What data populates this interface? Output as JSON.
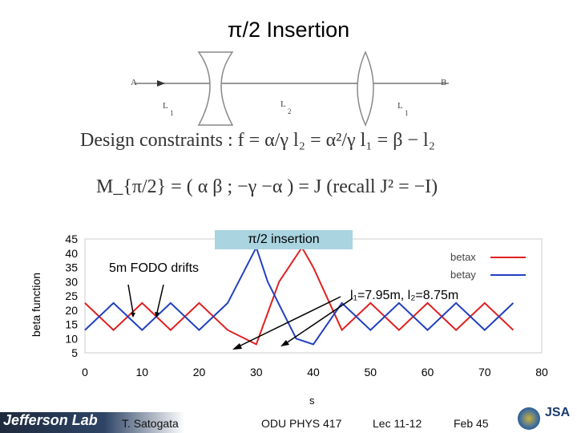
{
  "slide": {
    "title": "π/2 Insertion",
    "optics": {
      "end_left": "A",
      "end_right": "B",
      "labels": [
        "L",
        "L",
        "L"
      ],
      "subscripts": [
        "1",
        "2",
        "1"
      ]
    },
    "equations": {
      "constraints": "Design constraints :  f = α/γ    l₂ = α²/γ    l₁ = β − l₂",
      "matrix": "M_{π/2} = ( α  β ; −γ  −α ) = J        (recall J² = −I)"
    },
    "annotations": {
      "insertion": "π/2 insertion",
      "fodo": "5m FODO drifts",
      "lengths": "l₁=7.95m, l₂=8.75m"
    }
  },
  "footer": {
    "logo": "Jefferson Lab",
    "author": "T. Satogata",
    "course": "ODU PHYS 417",
    "lecture": "Lec 11-12",
    "date": "Feb  45",
    "badge": "JSA"
  },
  "chart_data": {
    "type": "line",
    "xlabel": "s",
    "ylabel": "beta function",
    "xlim": [
      0,
      80
    ],
    "ylim": [
      5,
      45
    ],
    "xticks": [
      0,
      10,
      20,
      30,
      40,
      50,
      60,
      70,
      80
    ],
    "yticks": [
      5,
      10,
      15,
      20,
      25,
      30,
      35,
      40,
      45
    ],
    "grid": false,
    "legend_position": "top-right",
    "series": [
      {
        "name": "betax",
        "color": "#e02020",
        "x": [
          0,
          5,
          10,
          15,
          20,
          25,
          30,
          34,
          38,
          40,
          45,
          50,
          55,
          60,
          65,
          70,
          75
        ],
        "y": [
          22.5,
          13,
          22.5,
          13,
          22.5,
          13,
          8,
          30,
          42,
          35,
          13,
          22.5,
          13,
          22.5,
          13,
          22.5,
          13
        ]
      },
      {
        "name": "betay",
        "color": "#2040c0",
        "x": [
          0,
          5,
          10,
          15,
          20,
          25,
          30,
          32,
          37,
          40,
          45,
          50,
          55,
          60,
          65,
          70,
          75
        ],
        "y": [
          13,
          22.5,
          13,
          22.5,
          13,
          22.5,
          42,
          30,
          10,
          8,
          22.5,
          13,
          22.5,
          13,
          22.5,
          13,
          22.5
        ]
      }
    ]
  }
}
